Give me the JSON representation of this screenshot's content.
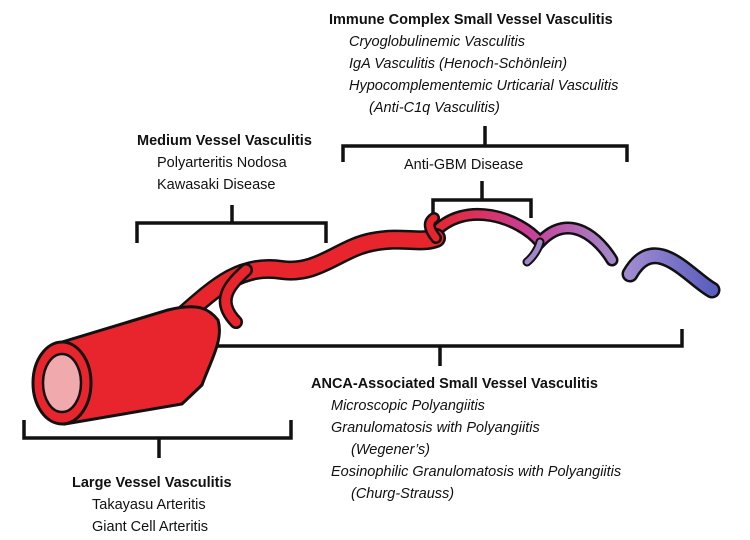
{
  "immune_complex": {
    "title": "Immune Complex  Small Vessel Vasculitis",
    "items": [
      "Cryoglobulinemic Vasculitis",
      "IgA Vasculitis (Henoch-Schönlein)",
      "Hypocomplementemic Urticarial Vasculitis",
      "(Anti-C1q Vasculitis)"
    ]
  },
  "anti_gbm": {
    "label": "Anti-GBM Disease"
  },
  "medium_vessel": {
    "title": "Medium Vessel Vasculitis",
    "items": [
      "Polyarteritis Nodosa",
      "Kawasaki Disease"
    ]
  },
  "anca": {
    "title": "ANCA-Associated Small Vessel Vasculitis",
    "items": [
      "Microscopic Polyangiitis",
      "Granulomatosis with Polyangiitis",
      "(Wegener’s)",
      "Eosinophilic Granulomatosis with Polyangiitis",
      "(Churg-Strauss)"
    ]
  },
  "large_vessel": {
    "title": "Large Vessel Vasculitis",
    "items": [
      "Takayasu Arteritis",
      "Giant Cell Arteritis"
    ]
  },
  "colors": {
    "artery_red": "#e8252d",
    "vessel_purple": "#a287c8",
    "vein_blue": "#5b5fbf",
    "outline": "#111111"
  }
}
